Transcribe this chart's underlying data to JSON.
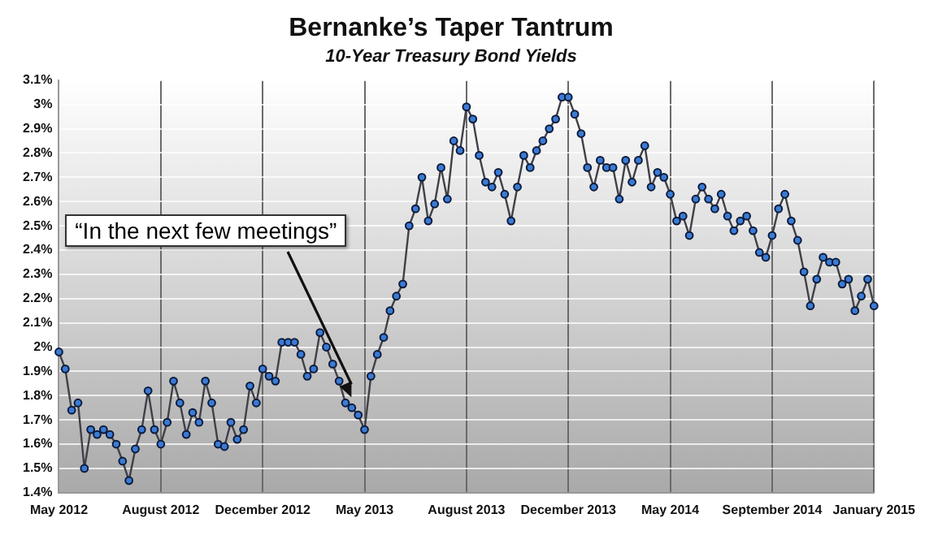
{
  "chart_data": {
    "type": "line",
    "title": "Bernanke’s Taper Tantrum",
    "subtitle": "10-Year Treasury Bond Yields",
    "categories": [
      "May 2012",
      null,
      null,
      null,
      null,
      null,
      null,
      null,
      null,
      null,
      null,
      null,
      null,
      null,
      null,
      null,
      "August 2012",
      null,
      null,
      null,
      null,
      null,
      null,
      null,
      null,
      null,
      null,
      null,
      null,
      null,
      null,
      null,
      "December 2012",
      null,
      null,
      null,
      null,
      null,
      null,
      null,
      null,
      null,
      null,
      null,
      null,
      null,
      null,
      null,
      "May 2013",
      null,
      null,
      null,
      null,
      null,
      null,
      null,
      null,
      null,
      null,
      null,
      null,
      null,
      null,
      null,
      "August 2013",
      null,
      null,
      null,
      null,
      null,
      null,
      null,
      null,
      null,
      null,
      null,
      null,
      null,
      null,
      null,
      "December 2013",
      null,
      null,
      null,
      null,
      null,
      null,
      null,
      null,
      null,
      null,
      null,
      null,
      null,
      null,
      null,
      "May 2014",
      null,
      null,
      null,
      null,
      null,
      null,
      null,
      null,
      null,
      null,
      null,
      null,
      null,
      null,
      null,
      "September 2014",
      null,
      null,
      null,
      null,
      null,
      null,
      null,
      null,
      null,
      null,
      null,
      null,
      null,
      null,
      null,
      "January 2015"
    ],
    "series": [
      {
        "color": "#3a7bd5",
        "values": [
          1.98,
          1.91,
          1.74,
          1.77,
          1.5,
          1.66,
          1.64,
          1.66,
          1.64,
          1.6,
          1.53,
          1.45,
          1.58,
          1.66,
          1.82,
          1.66,
          1.6,
          1.69,
          1.86,
          1.77,
          1.64,
          1.73,
          1.69,
          1.86,
          1.77,
          1.6,
          1.59,
          1.69,
          1.62,
          1.66,
          1.84,
          1.77,
          1.91,
          1.88,
          1.86,
          2.02,
          2.02,
          2.02,
          1.97,
          1.88,
          1.91,
          2.06,
          2.0,
          1.93,
          1.86,
          1.77,
          1.75,
          1.72,
          1.66,
          1.88,
          1.97,
          2.04,
          2.15,
          2.21,
          2.26,
          2.5,
          2.57,
          2.7,
          2.52,
          2.59,
          2.74,
          2.61,
          2.85,
          2.81,
          2.99,
          2.94,
          2.79,
          2.68,
          2.66,
          2.72,
          2.63,
          2.52,
          2.66,
          2.79,
          2.74,
          2.81,
          2.85,
          2.9,
          2.94,
          3.03,
          3.03,
          2.96,
          2.88,
          2.74,
          2.66,
          2.77,
          2.74,
          2.74,
          2.61,
          2.77,
          2.68,
          2.77,
          2.83,
          2.66,
          2.72,
          2.7,
          2.63,
          2.52,
          2.54,
          2.46,
          2.61,
          2.66,
          2.61,
          2.57,
          2.63,
          2.54,
          2.48,
          2.52,
          2.54,
          2.48,
          2.39,
          2.37,
          2.46,
          2.57,
          2.63,
          2.52,
          2.44,
          2.31,
          2.17,
          2.28,
          2.37,
          2.35,
          2.35,
          2.26,
          2.28,
          2.15,
          2.21,
          2.28,
          2.17
        ]
      }
    ],
    "ylim": [
      1.4,
      3.1
    ],
    "yticks": [
      {
        "value": 1.4,
        "label": "1.4%"
      },
      {
        "value": 1.5,
        "label": "1.5%"
      },
      {
        "value": 1.6,
        "label": "1.6%"
      },
      {
        "value": 1.7,
        "label": "1.7%"
      },
      {
        "value": 1.8,
        "label": "1.8%"
      },
      {
        "value": 1.9,
        "label": "1.9%"
      },
      {
        "value": 2,
        "label": "2%"
      },
      {
        "value": 2.1,
        "label": "2.1%"
      },
      {
        "value": 2.2,
        "label": "2.2%"
      },
      {
        "value": 2.3,
        "label": "2.3%"
      },
      {
        "value": 2.4,
        "label": "2.4%"
      },
      {
        "value": 2.5,
        "label": "2.5%"
      },
      {
        "value": 2.6,
        "label": "2.6%"
      },
      {
        "value": 2.7,
        "label": "2.7%"
      },
      {
        "value": 2.8,
        "label": "2.8%"
      },
      {
        "value": 2.9,
        "label": "2.9%"
      },
      {
        "value": 3,
        "label": "3%"
      },
      {
        "value": 3.1,
        "label": "3.1%"
      }
    ],
    "grid": true,
    "marker": "circle",
    "line_style": "solid",
    "legend": false,
    "annotations": [
      "“In the next few meetings”"
    ]
  }
}
